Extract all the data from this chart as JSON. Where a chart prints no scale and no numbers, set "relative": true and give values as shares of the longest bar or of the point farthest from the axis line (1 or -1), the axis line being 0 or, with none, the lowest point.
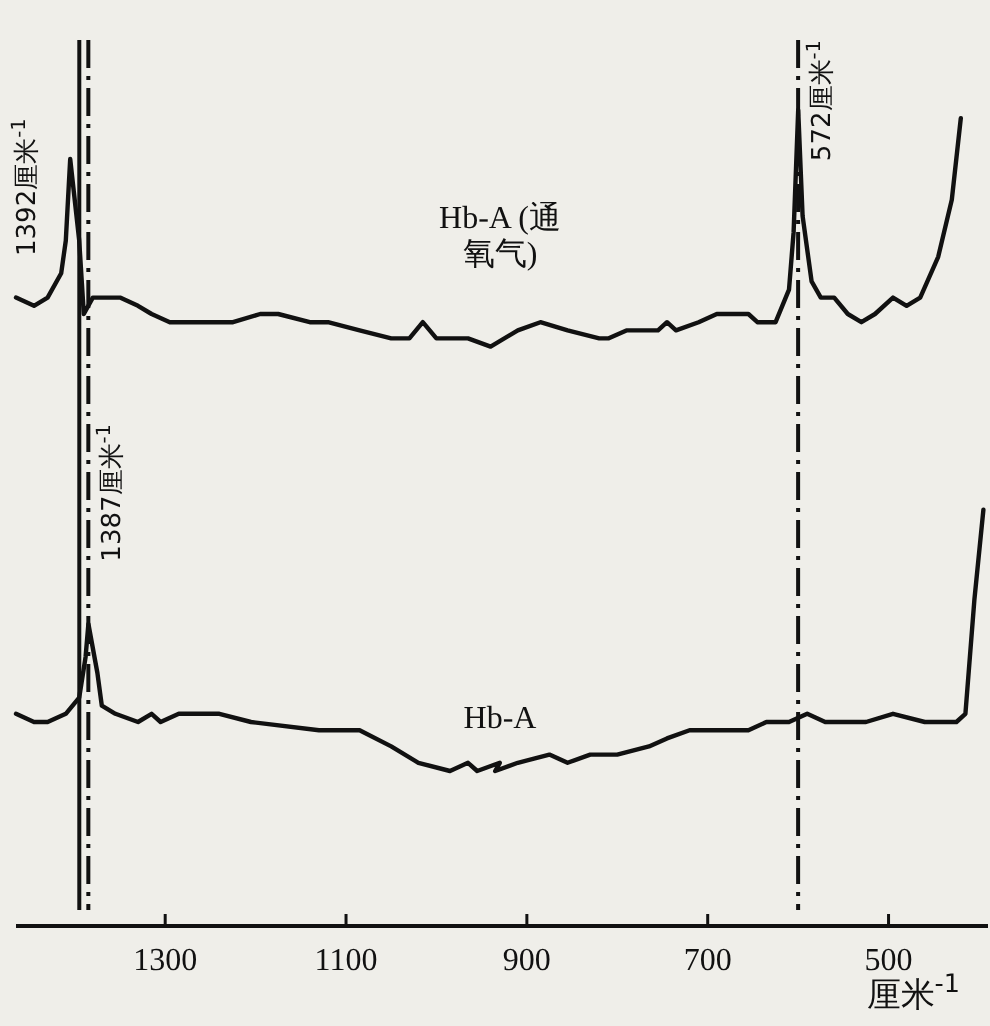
{
  "chart_data": {
    "type": "line",
    "relative": true,
    "xlabel": "厘米$^{-1}$",
    "xlim": [
      1465,
      390
    ],
    "xticks": [
      1300,
      1100,
      900,
      700,
      500
    ],
    "marker": "none",
    "line_style": "solid",
    "legend": false,
    "tick_labels": "x",
    "series": [
      {
        "name": "Hb-A (通氧气)",
        "color": "#111111",
        "x": [
          1465,
          1445,
          1430,
          1415,
          1410,
          1405,
          1395,
          1390,
          1380,
          1365,
          1350,
          1330,
          1315,
          1295,
          1260,
          1225,
          1195,
          1175,
          1140,
          1120,
          1085,
          1050,
          1030,
          1015,
          1000,
          985,
          965,
          940,
          910,
          885,
          855,
          820,
          810,
          790,
          755,
          745,
          735,
          710,
          690,
          655,
          645,
          640,
          625,
          610,
          605,
          600,
          595,
          585,
          575,
          560,
          545,
          530,
          515,
          495,
          480,
          465,
          445,
          430,
          420
        ],
        "values": [
          0.77,
          0.76,
          0.77,
          0.8,
          0.84,
          0.94,
          0.84,
          0.75,
          0.77,
          0.77,
          0.77,
          0.76,
          0.75,
          0.74,
          0.74,
          0.74,
          0.75,
          0.75,
          0.74,
          0.74,
          0.73,
          0.72,
          0.72,
          0.74,
          0.72,
          0.72,
          0.72,
          0.71,
          0.73,
          0.74,
          0.73,
          0.72,
          0.72,
          0.73,
          0.73,
          0.74,
          0.73,
          0.74,
          0.75,
          0.75,
          0.74,
          0.74,
          0.74,
          0.78,
          0.85,
          1.0,
          0.87,
          0.79,
          0.77,
          0.77,
          0.75,
          0.74,
          0.75,
          0.77,
          0.76,
          0.77,
          0.82,
          0.89,
          0.99
        ]
      },
      {
        "name": "Hb-A",
        "color": "#111111",
        "x": [
          1465,
          1445,
          1430,
          1410,
          1395,
          1388,
          1385,
          1375,
          1370,
          1355,
          1330,
          1315,
          1305,
          1285,
          1260,
          1240,
          1205,
          1130,
          1085,
          1050,
          1020,
          985,
          965,
          955,
          930,
          935,
          910,
          875,
          855,
          830,
          800,
          765,
          745,
          720,
          700,
          680,
          655,
          635,
          610,
          590,
          570,
          545,
          525,
          495,
          460,
          425,
          415,
          405,
          395
        ],
        "values": [
          0.26,
          0.25,
          0.25,
          0.26,
          0.28,
          0.33,
          0.37,
          0.31,
          0.27,
          0.26,
          0.25,
          0.26,
          0.25,
          0.26,
          0.26,
          0.26,
          0.25,
          0.24,
          0.24,
          0.22,
          0.2,
          0.19,
          0.2,
          0.19,
          0.2,
          0.19,
          0.2,
          0.21,
          0.2,
          0.21,
          0.21,
          0.22,
          0.23,
          0.24,
          0.24,
          0.24,
          0.24,
          0.25,
          0.25,
          0.26,
          0.25,
          0.25,
          0.25,
          0.26,
          0.25,
          0.25,
          0.26,
          0.4,
          0.51
        ]
      }
    ],
    "ref_lines": [
      {
        "axis": "x",
        "value": 1395,
        "label": "1392厘米$^{-1}$",
        "line_style": "solid"
      },
      {
        "axis": "x",
        "value": 1385,
        "label": "1387厘米$^{-1}$",
        "line_style": "dashed"
      },
      {
        "axis": "x",
        "value": 600,
        "label": "572厘米$^{-1}$",
        "line_style": "dashed"
      }
    ]
  }
}
